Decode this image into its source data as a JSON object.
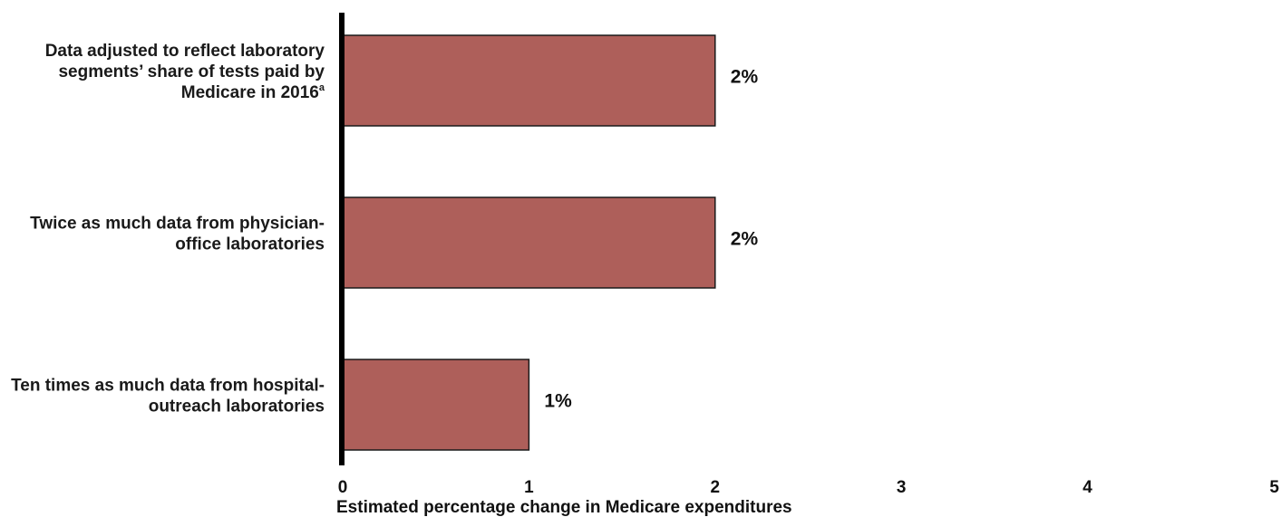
{
  "chart_data": {
    "type": "bar",
    "orientation": "horizontal",
    "categories": [
      {
        "lines": [
          "Data adjusted to reflect laboratory",
          "segments’ share of tests paid by",
          "Medicare in 2016"
        ],
        "superscript": "a"
      },
      {
        "lines": [
          "Twice as much data from physician-",
          "office laboratories"
        ],
        "superscript": ""
      },
      {
        "lines": [
          "Ten times as much data from hospital-",
          "outreach laboratories"
        ],
        "superscript": ""
      }
    ],
    "values": [
      2,
      2,
      1
    ],
    "data_labels": [
      "2%",
      "2%",
      "1%"
    ],
    "xlim": [
      0,
      5
    ],
    "xticks": [
      "0",
      "1",
      "2",
      "3",
      "4",
      "5"
    ],
    "xlabel": "Estimated percentage change in Medicare expenditures",
    "title": "",
    "grid": false,
    "legend": "none",
    "colors": {
      "bar": "#ae5f5a",
      "bar_edge": "#1a1a1a",
      "axis": "#000000"
    }
  }
}
